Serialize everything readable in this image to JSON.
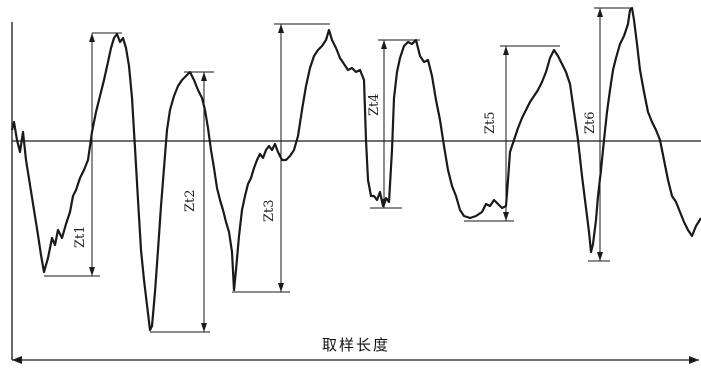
{
  "diagram": {
    "sampling_length_label": "取样长度",
    "peak_valley_labels": [
      "Zt1",
      "Zt2",
      "Zt3",
      "Zt4",
      "Zt5",
      "Zt6"
    ],
    "colors": {
      "ink": "#1a1a1a",
      "background": "#ffffff"
    }
  }
}
